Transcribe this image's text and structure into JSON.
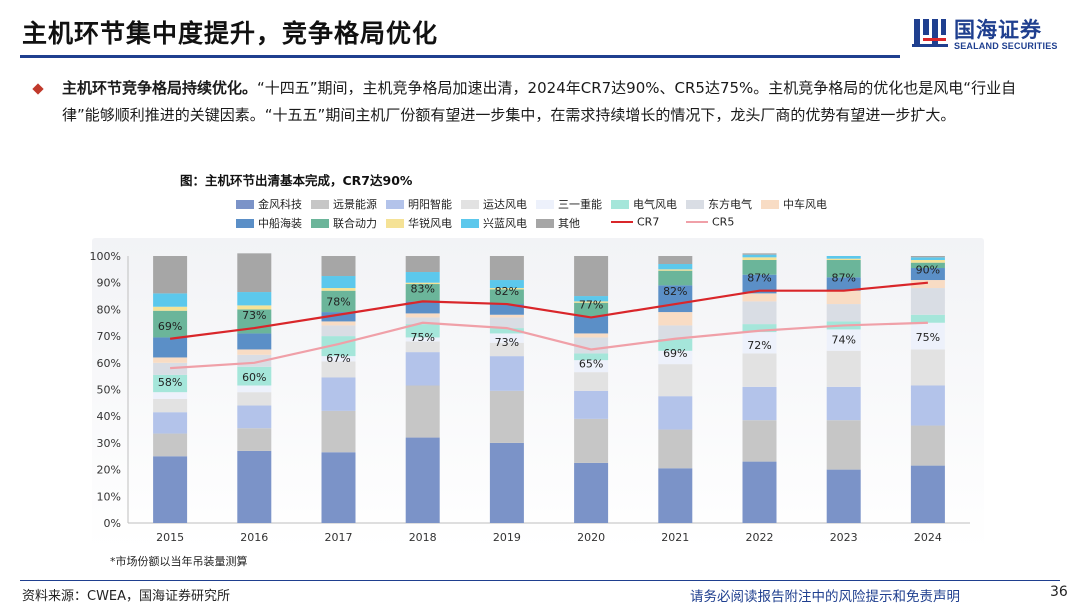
{
  "header": {
    "title": "主机环节集中度提升，竞争格局优化"
  },
  "logo": {
    "cn": "国海证券",
    "en": "SEALAND SECURITIES"
  },
  "body": {
    "bold_lead": "主机环节竞争格局持续优化。",
    "text": "“十四五”期间，主机竞争格局加速出清，2024年CR7达90%、CR5达75%。主机竞争格局的优化也是风电“行业自律”能够顺利推进的关键因素。“十五五”期间主机厂份额有望进一步集中，在需求持续增长的情况下，龙头厂商的优势有望进一步扩大。"
  },
  "chart_caption": "图：主机环节出清基本完成，CR7达90%",
  "footnote": "*市场份额以当年吊装量测算",
  "footer": {
    "source": "资料来源：CWEA，国海证券研究所",
    "disclaimer": "请务必阅读报告附注中的风险提示和免责声明",
    "page": "36"
  },
  "colors": {
    "brand": "#1f3f8f",
    "金风科技": "#7b93c8",
    "远景能源": "#c6c6c6",
    "明阳智能": "#b3c3ea",
    "运达风电": "#e2e2e2",
    "三一重能": "#edf1fb",
    "电气风电": "#a5e6da",
    "东方电气": "#d9dde4",
    "中车风电": "#f8dcc4",
    "中船海装": "#5b8fc7",
    "联合动力": "#6bb59a",
    "华锐风电": "#f5e296",
    "兴蓝风电": "#5cc8ec",
    "其他": "#a6a6a6",
    "CR7": "#d9262a",
    "CR5": "#f0a0a8"
  },
  "chart_data": {
    "type": "bar",
    "stacked": true,
    "categories": [
      "2015",
      "2016",
      "2017",
      "2018",
      "2019",
      "2020",
      "2021",
      "2022",
      "2023",
      "2024"
    ],
    "ylim": [
      0,
      100
    ],
    "yticks": [
      "0%",
      "10%",
      "20%",
      "30%",
      "40%",
      "50%",
      "60%",
      "70%",
      "80%",
      "90%",
      "100%"
    ],
    "series": [
      {
        "name": "金风科技",
        "values": [
          25,
          27,
          26.5,
          32,
          30,
          22.5,
          20.5,
          23,
          20,
          21.5
        ]
      },
      {
        "name": "远景能源",
        "values": [
          8.5,
          8.5,
          15.5,
          19.5,
          19.5,
          16.5,
          14.5,
          15.5,
          18.5,
          15
        ]
      },
      {
        "name": "明阳智能",
        "values": [
          8,
          8.5,
          12.5,
          12.5,
          13,
          10.5,
          12.5,
          12.5,
          12.5,
          15
        ]
      },
      {
        "name": "运达风电",
        "values": [
          5,
          5,
          6,
          4,
          5,
          7,
          12,
          12.5,
          13.5,
          13.5
        ]
      },
      {
        "name": "三一重能",
        "values": [
          2.5,
          2.5,
          2,
          1.5,
          3.5,
          4.5,
          5,
          8,
          8,
          10
        ]
      },
      {
        "name": "电气风电",
        "values": [
          6.5,
          7,
          7.5,
          5,
          2,
          2.5,
          4.5,
          3,
          3,
          3
        ]
      },
      {
        "name": "东方电气",
        "values": [
          4.5,
          4.5,
          4,
          2.5,
          4,
          6,
          5,
          8.5,
          6.5,
          10
        ]
      },
      {
        "name": "中车风电",
        "values": [
          2,
          2,
          1.5,
          1.5,
          1,
          1.5,
          5,
          3,
          5,
          3
        ]
      },
      {
        "name": "中船海装",
        "values": [
          7.5,
          6,
          3.5,
          4.5,
          4,
          6.5,
          10,
          7,
          5,
          4.5
        ]
      },
      {
        "name": "联合动力",
        "values": [
          10,
          9,
          8,
          6.5,
          5.5,
          5,
          5.5,
          5.5,
          6.5,
          2
        ]
      },
      {
        "name": "华锐风电",
        "values": [
          1.5,
          1.5,
          1,
          0.5,
          0.5,
          0.5,
          0.5,
          1,
          0.5,
          1
        ]
      },
      {
        "name": "兴蓝风电",
        "values": [
          5,
          5,
          4.5,
          4,
          3,
          2,
          2,
          1,
          1,
          1
        ]
      },
      {
        "name": "其他",
        "values": [
          14,
          14.5,
          7.5,
          6,
          9,
          15,
          3,
          0.5,
          0,
          0.5
        ]
      }
    ],
    "lines": [
      {
        "name": "CR7",
        "values": [
          69,
          73,
          78,
          83,
          82,
          77,
          82,
          87,
          87,
          90
        ],
        "labels": [
          "69%",
          "73%",
          "78%",
          "83%",
          "82%",
          "77%",
          "82%",
          "87%",
          "87%",
          "90%"
        ]
      },
      {
        "name": "CR5",
        "values": [
          58,
          60,
          67,
          75,
          73,
          65,
          69,
          72,
          74,
          75
        ],
        "labels": [
          "58%",
          "60%",
          "67%",
          "75%",
          "73%",
          "65%",
          "69%",
          "72%",
          "74%",
          "75%"
        ]
      }
    ]
  }
}
